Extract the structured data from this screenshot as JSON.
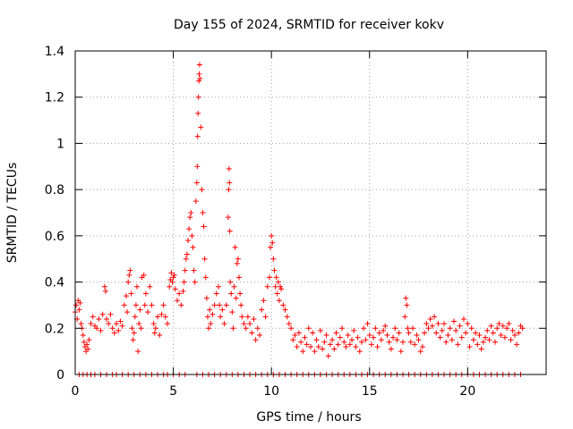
{
  "chart_data": {
    "type": "scatter",
    "title": "Day 155 of 2024, SRMTID for receiver kokv",
    "xlabel": "GPS time / hours",
    "ylabel": "SRMTID / TECUs",
    "xlim": [
      0,
      24
    ],
    "ylim": [
      0,
      1.4
    ],
    "grid": true,
    "marker": "+",
    "color": "#ff0000",
    "x_ticks": [
      0,
      5,
      10,
      15,
      20
    ],
    "x_tick_labels": [
      "0",
      "5",
      "10",
      "15",
      "20"
    ],
    "y_ticks": [
      0,
      0.2,
      0.4,
      0.6,
      0.8,
      1,
      1.2,
      1.4
    ],
    "y_tick_labels": [
      "0",
      "0.2",
      "0.4",
      "0.6",
      "0.8",
      "1",
      "1.2",
      "1.4"
    ],
    "series": [
      {
        "name": "SRMTID",
        "points": [
          [
            0.0,
            0.27
          ],
          [
            0.05,
            0.3
          ],
          [
            0.1,
            0.24
          ],
          [
            0.15,
            0.32
          ],
          [
            0.2,
            0.28
          ],
          [
            0.25,
            0.31
          ],
          [
            0.3,
            0.22
          ],
          [
            0.35,
            0.2
          ],
          [
            0.4,
            0.17
          ],
          [
            0.45,
            0.14
          ],
          [
            0.5,
            0.12
          ],
          [
            0.55,
            0.1
          ],
          [
            0.6,
            0.13
          ],
          [
            0.65,
            0.11
          ],
          [
            0.7,
            0.15
          ],
          [
            0.8,
            0.22
          ],
          [
            0.9,
            0.25
          ],
          [
            1.0,
            0.21
          ],
          [
            1.1,
            0.2
          ],
          [
            1.2,
            0.24
          ],
          [
            1.3,
            0.19
          ],
          [
            1.4,
            0.26
          ],
          [
            1.5,
            0.38
          ],
          [
            1.55,
            0.36
          ],
          [
            1.6,
            0.24
          ],
          [
            1.7,
            0.22
          ],
          [
            1.8,
            0.26
          ],
          [
            1.9,
            0.2
          ],
          [
            2.0,
            0.18
          ],
          [
            2.1,
            0.22
          ],
          [
            2.2,
            0.19
          ],
          [
            2.3,
            0.23
          ],
          [
            2.4,
            0.21
          ],
          [
            2.5,
            0.3
          ],
          [
            2.6,
            0.34
          ],
          [
            2.65,
            0.27
          ],
          [
            2.7,
            0.4
          ],
          [
            2.75,
            0.43
          ],
          [
            2.8,
            0.45
          ],
          [
            2.85,
            0.35
          ],
          [
            2.9,
            0.2
          ],
          [
            2.95,
            0.15
          ],
          [
            3.0,
            0.18
          ],
          [
            3.05,
            0.25
          ],
          [
            3.1,
            0.3
          ],
          [
            3.15,
            0.38
          ],
          [
            3.2,
            0.1
          ],
          [
            3.25,
            0.22
          ],
          [
            3.3,
            0.28
          ],
          [
            3.35,
            0.2
          ],
          [
            3.4,
            0.42
          ],
          [
            3.5,
            0.43
          ],
          [
            3.55,
            0.3
          ],
          [
            3.6,
            0.35
          ],
          [
            3.7,
            0.27
          ],
          [
            3.8,
            0.38
          ],
          [
            3.9,
            0.3
          ],
          [
            4.0,
            0.22
          ],
          [
            4.05,
            0.18
          ],
          [
            4.1,
            0.2
          ],
          [
            4.2,
            0.25
          ],
          [
            4.3,
            0.17
          ],
          [
            4.4,
            0.26
          ],
          [
            4.5,
            0.3
          ],
          [
            4.6,
            0.25
          ],
          [
            4.7,
            0.22
          ],
          [
            4.8,
            0.38
          ],
          [
            4.85,
            0.41
          ],
          [
            4.9,
            0.44
          ],
          [
            4.95,
            0.4
          ],
          [
            5.0,
            0.42
          ],
          [
            5.05,
            0.43
          ],
          [
            5.1,
            0.37
          ],
          [
            5.2,
            0.32
          ],
          [
            5.3,
            0.35
          ],
          [
            5.4,
            0.3
          ],
          [
            5.5,
            0.36
          ],
          [
            5.55,
            0.4
          ],
          [
            5.6,
            0.45
          ],
          [
            5.65,
            0.5
          ],
          [
            5.7,
            0.52
          ],
          [
            5.75,
            0.58
          ],
          [
            5.8,
            0.63
          ],
          [
            5.85,
            0.68
          ],
          [
            5.9,
            0.7
          ],
          [
            5.95,
            0.6
          ],
          [
            6.0,
            0.55
          ],
          [
            6.05,
            0.45
          ],
          [
            6.1,
            0.4
          ],
          [
            6.15,
            0.75
          ],
          [
            6.2,
            0.83
          ],
          [
            6.22,
            0.9
          ],
          [
            6.24,
            1.03
          ],
          [
            6.26,
            1.13
          ],
          [
            6.28,
            1.2
          ],
          [
            6.3,
            1.27
          ],
          [
            6.32,
            1.3
          ],
          [
            6.34,
            1.34
          ],
          [
            6.36,
            1.28
          ],
          [
            6.4,
            1.07
          ],
          [
            6.45,
            0.8
          ],
          [
            6.5,
            0.7
          ],
          [
            6.55,
            0.64
          ],
          [
            6.6,
            0.5
          ],
          [
            6.65,
            0.42
          ],
          [
            6.7,
            0.33
          ],
          [
            6.75,
            0.25
          ],
          [
            6.8,
            0.2
          ],
          [
            6.85,
            0.28
          ],
          [
            6.9,
            0.22
          ],
          [
            7.0,
            0.26
          ],
          [
            7.1,
            0.3
          ],
          [
            7.2,
            0.35
          ],
          [
            7.3,
            0.38
          ],
          [
            7.35,
            0.3
          ],
          [
            7.4,
            0.25
          ],
          [
            7.5,
            0.28
          ],
          [
            7.6,
            0.22
          ],
          [
            7.7,
            0.3
          ],
          [
            7.8,
            0.68
          ],
          [
            7.82,
            0.8
          ],
          [
            7.84,
            0.89
          ],
          [
            7.86,
            0.83
          ],
          [
            7.88,
            0.62
          ],
          [
            7.9,
            0.4
          ],
          [
            7.95,
            0.35
          ],
          [
            8.0,
            0.27
          ],
          [
            8.05,
            0.2
          ],
          [
            8.1,
            0.38
          ],
          [
            8.15,
            0.55
          ],
          [
            8.2,
            0.33
          ],
          [
            8.25,
            0.48
          ],
          [
            8.3,
            0.5
          ],
          [
            8.35,
            0.42
          ],
          [
            8.4,
            0.35
          ],
          [
            8.45,
            0.3
          ],
          [
            8.5,
            0.25
          ],
          [
            8.6,
            0.22
          ],
          [
            8.7,
            0.2
          ],
          [
            8.8,
            0.25
          ],
          [
            8.9,
            0.22
          ],
          [
            9.0,
            0.18
          ],
          [
            9.1,
            0.24
          ],
          [
            9.2,
            0.15
          ],
          [
            9.3,
            0.2
          ],
          [
            9.4,
            0.17
          ],
          [
            9.5,
            0.28
          ],
          [
            9.6,
            0.32
          ],
          [
            9.7,
            0.25
          ],
          [
            9.8,
            0.38
          ],
          [
            9.9,
            0.42
          ],
          [
            9.95,
            0.55
          ],
          [
            10.0,
            0.6
          ],
          [
            10.05,
            0.57
          ],
          [
            10.1,
            0.5
          ],
          [
            10.15,
            0.45
          ],
          [
            10.2,
            0.38
          ],
          [
            10.25,
            0.42
          ],
          [
            10.3,
            0.35
          ],
          [
            10.35,
            0.4
          ],
          [
            10.4,
            0.32
          ],
          [
            10.45,
            0.38
          ],
          [
            10.5,
            0.37
          ],
          [
            10.6,
            0.3
          ],
          [
            10.7,
            0.28
          ],
          [
            10.8,
            0.25
          ],
          [
            10.9,
            0.22
          ],
          [
            11.0,
            0.2
          ],
          [
            11.1,
            0.15
          ],
          [
            11.2,
            0.17
          ],
          [
            11.3,
            0.12
          ],
          [
            11.4,
            0.18
          ],
          [
            11.5,
            0.14
          ],
          [
            11.6,
            0.1
          ],
          [
            11.7,
            0.16
          ],
          [
            11.8,
            0.13
          ],
          [
            11.9,
            0.2
          ],
          [
            12.0,
            0.12
          ],
          [
            12.1,
            0.18
          ],
          [
            12.2,
            0.1
          ],
          [
            12.3,
            0.15
          ],
          [
            12.4,
            0.12
          ],
          [
            12.5,
            0.19
          ],
          [
            12.6,
            0.11
          ],
          [
            12.7,
            0.14
          ],
          [
            12.8,
            0.17
          ],
          [
            12.9,
            0.08
          ],
          [
            13.0,
            0.13
          ],
          [
            13.1,
            0.15
          ],
          [
            13.2,
            0.11
          ],
          [
            13.3,
            0.18
          ],
          [
            13.4,
            0.13
          ],
          [
            13.5,
            0.16
          ],
          [
            13.6,
            0.2
          ],
          [
            13.7,
            0.14
          ],
          [
            13.8,
            0.12
          ],
          [
            13.9,
            0.17
          ],
          [
            14.0,
            0.13
          ],
          [
            14.1,
            0.15
          ],
          [
            14.2,
            0.19
          ],
          [
            14.3,
            0.12
          ],
          [
            14.4,
            0.16
          ],
          [
            14.5,
            0.1
          ],
          [
            14.6,
            0.14
          ],
          [
            14.7,
            0.2
          ],
          [
            14.8,
            0.15
          ],
          [
            14.9,
            0.22
          ],
          [
            15.0,
            0.17
          ],
          [
            15.1,
            0.13
          ],
          [
            15.2,
            0.16
          ],
          [
            15.3,
            0.2
          ],
          [
            15.4,
            0.12
          ],
          [
            15.5,
            0.18
          ],
          [
            15.6,
            0.15
          ],
          [
            15.7,
            0.19
          ],
          [
            15.8,
            0.21
          ],
          [
            15.9,
            0.17
          ],
          [
            16.0,
            0.14
          ],
          [
            16.1,
            0.11
          ],
          [
            16.2,
            0.16
          ],
          [
            16.3,
            0.2
          ],
          [
            16.4,
            0.15
          ],
          [
            16.5,
            0.18
          ],
          [
            16.6,
            0.1
          ],
          [
            16.7,
            0.14
          ],
          [
            16.8,
            0.25
          ],
          [
            16.85,
            0.33
          ],
          [
            16.9,
            0.3
          ],
          [
            16.95,
            0.2
          ],
          [
            17.0,
            0.18
          ],
          [
            17.1,
            0.14
          ],
          [
            17.2,
            0.2
          ],
          [
            17.3,
            0.13
          ],
          [
            17.4,
            0.17
          ],
          [
            17.5,
            0.15
          ],
          [
            17.6,
            0.1
          ],
          [
            17.7,
            0.12
          ],
          [
            17.8,
            0.18
          ],
          [
            17.9,
            0.22
          ],
          [
            18.0,
            0.2
          ],
          [
            18.1,
            0.24
          ],
          [
            18.2,
            0.21
          ],
          [
            18.3,
            0.25
          ],
          [
            18.4,
            0.18
          ],
          [
            18.5,
            0.22
          ],
          [
            18.6,
            0.16
          ],
          [
            18.7,
            0.19
          ],
          [
            18.8,
            0.22
          ],
          [
            18.9,
            0.14
          ],
          [
            19.0,
            0.17
          ],
          [
            19.1,
            0.2
          ],
          [
            19.2,
            0.15
          ],
          [
            19.3,
            0.23
          ],
          [
            19.4,
            0.19
          ],
          [
            19.5,
            0.13
          ],
          [
            19.6,
            0.21
          ],
          [
            19.7,
            0.16
          ],
          [
            19.8,
            0.24
          ],
          [
            19.9,
            0.18
          ],
          [
            20.0,
            0.22
          ],
          [
            20.1,
            0.12
          ],
          [
            20.2,
            0.2
          ],
          [
            20.3,
            0.15
          ],
          [
            20.4,
            0.18
          ],
          [
            20.5,
            0.13
          ],
          [
            20.6,
            0.17
          ],
          [
            20.7,
            0.11
          ],
          [
            20.8,
            0.14
          ],
          [
            20.9,
            0.16
          ],
          [
            21.0,
            0.19
          ],
          [
            21.1,
            0.15
          ],
          [
            21.2,
            0.21
          ],
          [
            21.3,
            0.18
          ],
          [
            21.4,
            0.14
          ],
          [
            21.5,
            0.2
          ],
          [
            21.6,
            0.22
          ],
          [
            21.7,
            0.17
          ],
          [
            21.8,
            0.21
          ],
          [
            21.9,
            0.16
          ],
          [
            22.0,
            0.2
          ],
          [
            22.1,
            0.22
          ],
          [
            22.2,
            0.15
          ],
          [
            22.3,
            0.19
          ],
          [
            22.4,
            0.17
          ],
          [
            22.5,
            0.13
          ],
          [
            22.6,
            0.18
          ],
          [
            22.7,
            0.21
          ],
          [
            22.8,
            0.2
          ]
        ],
        "zero_x": [
          0.2,
          0.4,
          0.6,
          0.8,
          1.0,
          1.3,
          1.6,
          1.9,
          2.1,
          2.4,
          2.7,
          3.0,
          3.3,
          3.6,
          3.9,
          4.2,
          4.5,
          4.7,
          5.0,
          5.3,
          5.6,
          6.2,
          6.5,
          6.8,
          7.1,
          7.4,
          7.7,
          8.0,
          8.3,
          8.6,
          8.9,
          9.2,
          9.5,
          9.8,
          10.1,
          10.4,
          10.7,
          11.0,
          11.3,
          11.6,
          11.9,
          12.2,
          12.5,
          12.8,
          13.1,
          13.4,
          13.7,
          14.0,
          14.3,
          14.6,
          14.9,
          15.2,
          15.5,
          15.8,
          16.1,
          16.4,
          16.7,
          17.0,
          17.3,
          17.6,
          17.9,
          18.2,
          18.5,
          18.8,
          19.1,
          19.4,
          19.7,
          20.0,
          20.3,
          20.6,
          20.9,
          21.2,
          21.5,
          21.8,
          22.1,
          22.4,
          22.7
        ]
      }
    ]
  }
}
